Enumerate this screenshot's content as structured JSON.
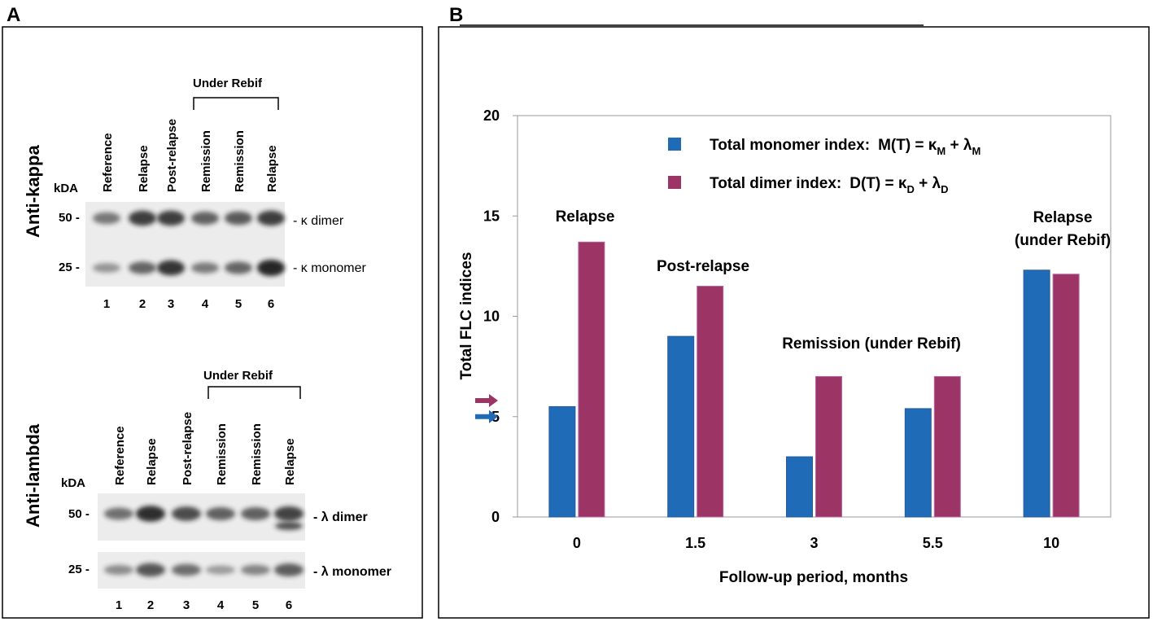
{
  "panel_a": {
    "letter": "A",
    "kappa": {
      "title": "Anti-kappa",
      "bracket_label": "Under Rebif",
      "kda_label": "kDA",
      "lanes": [
        "Reference",
        "Relapse",
        "Post-relapse",
        "Remission",
        "Remission",
        "Relapse"
      ],
      "lane_numbers": [
        "1",
        "2",
        "3",
        "4",
        "5",
        "6"
      ],
      "markers": [
        "50 -",
        "25 -"
      ],
      "band_labels": [
        "- κ dimer",
        "- κ monomer"
      ],
      "dimer_intensity": [
        0.45,
        0.85,
        0.85,
        0.6,
        0.65,
        0.85
      ],
      "monomer_intensity": [
        0.3,
        0.6,
        0.9,
        0.45,
        0.6,
        1.0
      ]
    },
    "lambda": {
      "title": "Anti-lambda",
      "bracket_label": "Under Rebif",
      "kda_label": "kDA",
      "lanes": [
        "Reference",
        "Relapse",
        "Post-relapse",
        "Remission",
        "Remission",
        "Relapse"
      ],
      "lane_numbers": [
        "1",
        "2",
        "3",
        "4",
        "5",
        "6"
      ],
      "markers": [
        "50 -",
        "25 -"
      ],
      "band_labels": [
        "- λ dimer",
        "- λ monomer"
      ],
      "dimer_intensity": [
        0.5,
        0.95,
        0.75,
        0.6,
        0.6,
        0.8
      ],
      "monomer_intensity": [
        0.35,
        0.7,
        0.55,
        0.25,
        0.4,
        0.65
      ]
    }
  },
  "panel_b": {
    "letter": "B",
    "legend": {
      "monomer_text": "Total monomer index:",
      "monomer_formula": "M(T) = κ",
      "monomer_sub1": "M",
      "monomer_plus": " + λ",
      "monomer_sub2": "M",
      "dimer_text": "Total dimer index:",
      "dimer_formula": "D(T) = κ",
      "dimer_sub1": "D",
      "dimer_plus": " + λ",
      "dimer_sub2": "D"
    },
    "annotations": [
      "Relapse",
      "Post-relapse",
      "Remission (under Rebif)",
      "Relapse",
      "(under Rebif)"
    ]
  },
  "colors": {
    "monomer": "#1F6BB8",
    "dimer": "#9C3566",
    "blot_bg": "#ECECEC",
    "band": "#1a1a1a"
  },
  "chart_data": {
    "type": "bar",
    "categories": [
      "0",
      "1.5",
      "3",
      "5.5",
      "10"
    ],
    "series": [
      {
        "name": "Total monomer index: M(T) = κM + λM",
        "values": [
          5.5,
          9.0,
          3.0,
          5.4,
          12.3
        ]
      },
      {
        "name": "Total dimer index: D(T) = κD + λD",
        "values": [
          13.7,
          11.5,
          7.0,
          7.0,
          12.1
        ]
      }
    ],
    "title": "",
    "xlabel": "Follow-up period, months",
    "ylabel": "Total FLC indices",
    "ylim": [
      0,
      20
    ],
    "yticks": [
      "0",
      "5",
      "10",
      "15",
      "20"
    ],
    "reference_arrows": {
      "dimer": 5.8,
      "monomer": 5.0
    }
  }
}
